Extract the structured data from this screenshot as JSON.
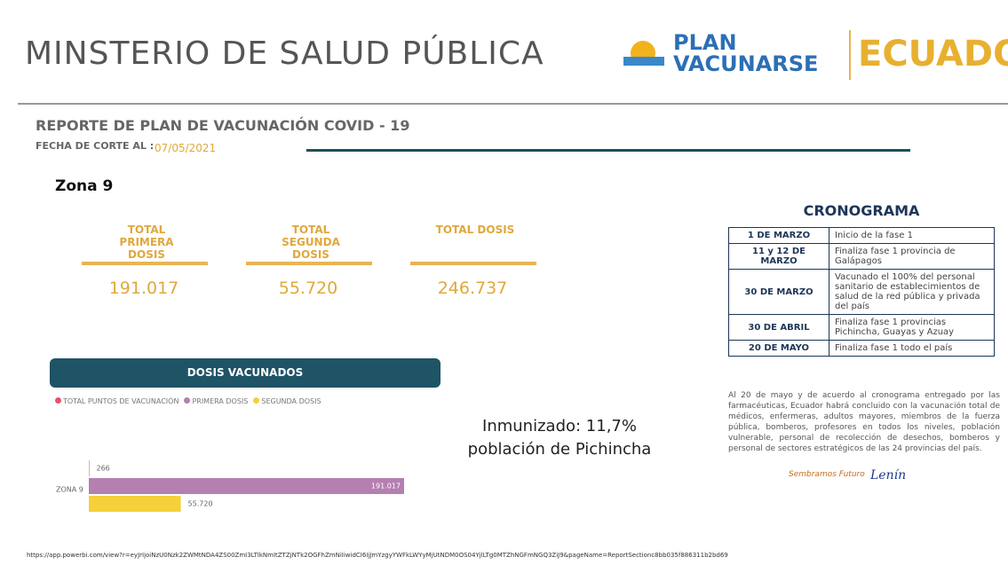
{
  "header": {
    "ministry": "MINSTERIO DE SALUD PÚBLICA",
    "logo_line1": "PLAN",
    "logo_line2": "VACUNARSE",
    "country": "ECUADOR"
  },
  "report": {
    "title": "REPORTE DE PLAN DE VACUNACIÓN COVID - 19",
    "cutoff_label": "FECHA DE CORTE AL :",
    "cutoff_date": "07/05/2021",
    "zone": "Zona 9"
  },
  "kpis": [
    {
      "label": "TOTAL PRIMERA DOSIS",
      "value": "191.017"
    },
    {
      "label": "TOTAL SEGUNDA DOSIS",
      "value": "55.720"
    },
    {
      "label": "TOTAL DOSIS",
      "value": "246.737"
    }
  ],
  "note": {
    "line1": "Inmunizado: 11,7%",
    "line2": "población de Pichincha"
  },
  "chart_data": {
    "type": "hbar",
    "title": "DOSIS VACUNADOS",
    "categories": [
      "ZONA 9"
    ],
    "series": [
      {
        "name": "TOTAL PUNTOS DE VACUNACIÓN",
        "color": "#e8506a",
        "values": [
          266
        ],
        "value_labels": [
          "266"
        ]
      },
      {
        "name": "PRIMERA DOSIS",
        "color": "#b57fb0",
        "values": [
          191017
        ],
        "value_labels": [
          "191.017"
        ]
      },
      {
        "name": "SEGUNDA DOSIS",
        "color": "#f5d03a",
        "values": [
          55720
        ],
        "value_labels": [
          "55.720"
        ]
      }
    ]
  },
  "schedule": {
    "title": "CRONOGRAMA",
    "rows": [
      [
        "1 DE MARZO",
        "Inicio de la fase 1"
      ],
      [
        "11 y 12 DE MARZO",
        "Finaliza fase 1 provincia de Galápagos"
      ],
      [
        "30 DE MARZO",
        "Vacunado el 100% del personal sanitario de establecimientos de salud de la red pública y privada del país"
      ],
      [
        "30 DE ABRIL",
        "Finaliza fase 1 provincias Pichincha, Guayas y Azuay"
      ],
      [
        "20 DE MAYO",
        "Finaliza fase 1 todo el país"
      ]
    ],
    "paragraph": "Al 20 de mayo y de acuerdo al cronograma entregado por las farmacéuticas, Ecuador habrá concluido con la vacunación total de médicos, enfermeras, adultos mayores, miembros de la fuerza pública, bomberos, profesores en todos los niveles, población vulnerable, personal de recolección de desechos, bomberos y personal de sectores estratégicos de las 24 provincias del país."
  },
  "footer_logos": [
    "Sembramos Futuro",
    "Lenín"
  ],
  "url": "https://app.powerbi.com/view?r=eyJrIjoiNzU0Nzk2ZWMtNDA4ZS00ZmI3LTlkNmItZTZjNTk2OGFhZmNiIiwidCI6IjJmYzgyYWFkLWYyMjUtNDM0OS04YjlLTg0MTZhNGFmNGQ3ZiJ9&pageName=ReportSectionc8bb035f886311b2bd69"
}
